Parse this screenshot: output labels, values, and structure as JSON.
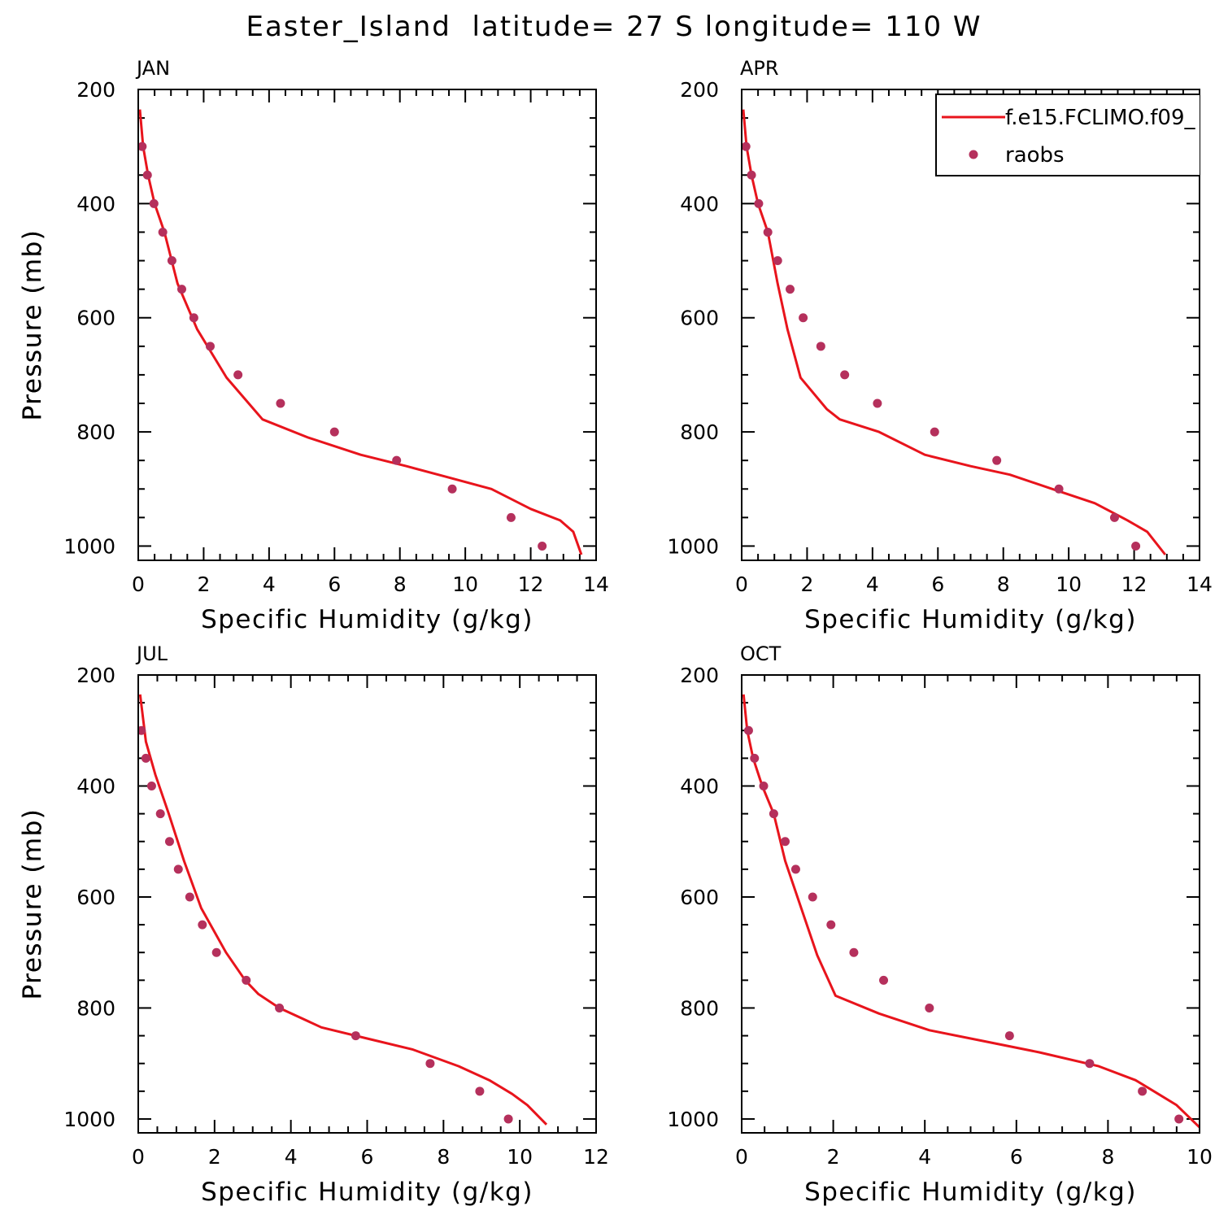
{
  "figure": {
    "title": "Easter_Island  latitude= 27 S longitude= 110 W",
    "legend": {
      "model_label": "f.e15.FCLIMO.f09_",
      "obs_label": "raobs",
      "placement": "top-right of APR panel"
    },
    "colors": {
      "model": "#e8141c",
      "obs": "#b5305c",
      "axes": "#000000",
      "background": "#ffffff"
    }
  },
  "chart_data": [
    {
      "type": "line",
      "title": "JAN",
      "xlabel": "Specific Humidity (g/kg)",
      "ylabel": "Pressure (mb)",
      "xlim": [
        0,
        14
      ],
      "ylim": [
        1025,
        200
      ],
      "y_inverted": true,
      "xticks": [
        0,
        2,
        4,
        6,
        8,
        10,
        12,
        14
      ],
      "yticks": [
        200,
        400,
        600,
        800,
        1000
      ],
      "series": [
        {
          "name": "f.e15.FCLIMO.f09_",
          "kind": "line",
          "x": [
            0.05,
            0.15,
            0.3,
            0.5,
            0.8,
            1.2,
            1.8,
            2.7,
            3.8,
            5.2,
            6.8,
            8.2,
            9.5,
            10.8,
            12.0,
            12.9,
            13.3,
            13.55
          ],
          "y": [
            235,
            300,
            350,
            400,
            450,
            540,
            620,
            705,
            778,
            810,
            840,
            860,
            880,
            900,
            935,
            955,
            975,
            1015
          ]
        },
        {
          "name": "raobs",
          "kind": "scatter",
          "x": [
            0.12,
            0.28,
            0.48,
            0.75,
            1.03,
            1.33,
            1.7,
            2.2,
            3.05,
            4.35,
            6.0,
            7.9,
            9.6,
            11.4,
            12.35
          ],
          "y": [
            300,
            350,
            400,
            450,
            500,
            550,
            600,
            650,
            700,
            750,
            800,
            850,
            900,
            950,
            1000
          ]
        }
      ]
    },
    {
      "type": "line",
      "title": "APR",
      "xlabel": "Specific Humidity (g/kg)",
      "ylabel": "Pressure (mb)",
      "xlim": [
        0,
        14
      ],
      "ylim": [
        1025,
        200
      ],
      "y_inverted": true,
      "xticks": [
        0,
        2,
        4,
        6,
        8,
        10,
        12,
        14
      ],
      "yticks": [
        200,
        400,
        600,
        800,
        1000
      ],
      "series": [
        {
          "name": "f.e15.FCLIMO.f09_",
          "kind": "line",
          "x": [
            0.05,
            0.15,
            0.3,
            0.5,
            0.8,
            1.1,
            1.4,
            1.8,
            2.6,
            3.0,
            4.2,
            5.6,
            7.0,
            8.2,
            9.5,
            10.8,
            11.8,
            12.4,
            12.95
          ],
          "y": [
            235,
            300,
            350,
            400,
            450,
            540,
            620,
            705,
            760,
            778,
            800,
            840,
            860,
            875,
            900,
            925,
            955,
            975,
            1015
          ]
        },
        {
          "name": "raobs",
          "kind": "scatter",
          "x": [
            0.13,
            0.3,
            0.52,
            0.8,
            1.1,
            1.48,
            1.88,
            2.42,
            3.15,
            4.15,
            5.9,
            7.8,
            9.7,
            11.4,
            12.05
          ],
          "y": [
            300,
            350,
            400,
            450,
            500,
            550,
            600,
            650,
            700,
            750,
            800,
            850,
            900,
            950,
            1000
          ]
        }
      ]
    },
    {
      "type": "line",
      "title": "JUL",
      "xlabel": "Specific Humidity (g/kg)",
      "ylabel": "Pressure (mb)",
      "xlim": [
        0,
        12
      ],
      "ylim": [
        1025,
        200
      ],
      "y_inverted": true,
      "xticks": [
        0,
        2,
        4,
        6,
        8,
        10,
        12
      ],
      "yticks": [
        200,
        400,
        600,
        800,
        1000
      ],
      "series": [
        {
          "name": "f.e15.FCLIMO.f09_",
          "kind": "line",
          "x": [
            0.05,
            0.2,
            0.45,
            0.8,
            1.2,
            1.65,
            2.3,
            2.8,
            3.15,
            3.7,
            4.8,
            6.0,
            7.2,
            8.4,
            9.2,
            9.8,
            10.2,
            10.7
          ],
          "y": [
            235,
            320,
            380,
            450,
            535,
            620,
            700,
            750,
            775,
            800,
            835,
            855,
            875,
            905,
            930,
            955,
            975,
            1010
          ]
        },
        {
          "name": "raobs",
          "kind": "scatter",
          "x": [
            0.08,
            0.2,
            0.35,
            0.58,
            0.82,
            1.05,
            1.35,
            1.68,
            2.05,
            2.83,
            3.7,
            5.7,
            7.65,
            8.95,
            9.7
          ],
          "y": [
            300,
            350,
            400,
            450,
            500,
            550,
            600,
            650,
            700,
            750,
            800,
            850,
            900,
            950,
            1000
          ]
        }
      ]
    },
    {
      "type": "line",
      "title": "OCT",
      "xlabel": "Specific Humidity (g/kg)",
      "ylabel": "Pressure (mb)",
      "xlim": [
        0,
        10
      ],
      "ylim": [
        1025,
        200
      ],
      "y_inverted": true,
      "xticks": [
        0,
        2,
        4,
        6,
        8,
        10
      ],
      "yticks": [
        200,
        400,
        600,
        800,
        1000
      ],
      "series": [
        {
          "name": "f.e15.FCLIMO.f09_",
          "kind": "line",
          "x": [
            0.04,
            0.12,
            0.25,
            0.45,
            0.7,
            0.95,
            1.3,
            1.65,
            2.05,
            3.0,
            4.1,
            5.3,
            6.5,
            7.8,
            8.6,
            9.1,
            9.5,
            10.0
          ],
          "y": [
            235,
            300,
            350,
            400,
            450,
            535,
            620,
            705,
            778,
            810,
            840,
            860,
            880,
            905,
            930,
            955,
            975,
            1015
          ]
        },
        {
          "name": "raobs",
          "kind": "scatter",
          "x": [
            0.15,
            0.28,
            0.48,
            0.7,
            0.95,
            1.18,
            1.55,
            1.95,
            2.45,
            3.1,
            4.1,
            5.85,
            7.6,
            8.75,
            9.55
          ],
          "y": [
            300,
            350,
            400,
            450,
            500,
            550,
            600,
            650,
            700,
            750,
            800,
            850,
            900,
            950,
            1000
          ]
        }
      ]
    }
  ]
}
